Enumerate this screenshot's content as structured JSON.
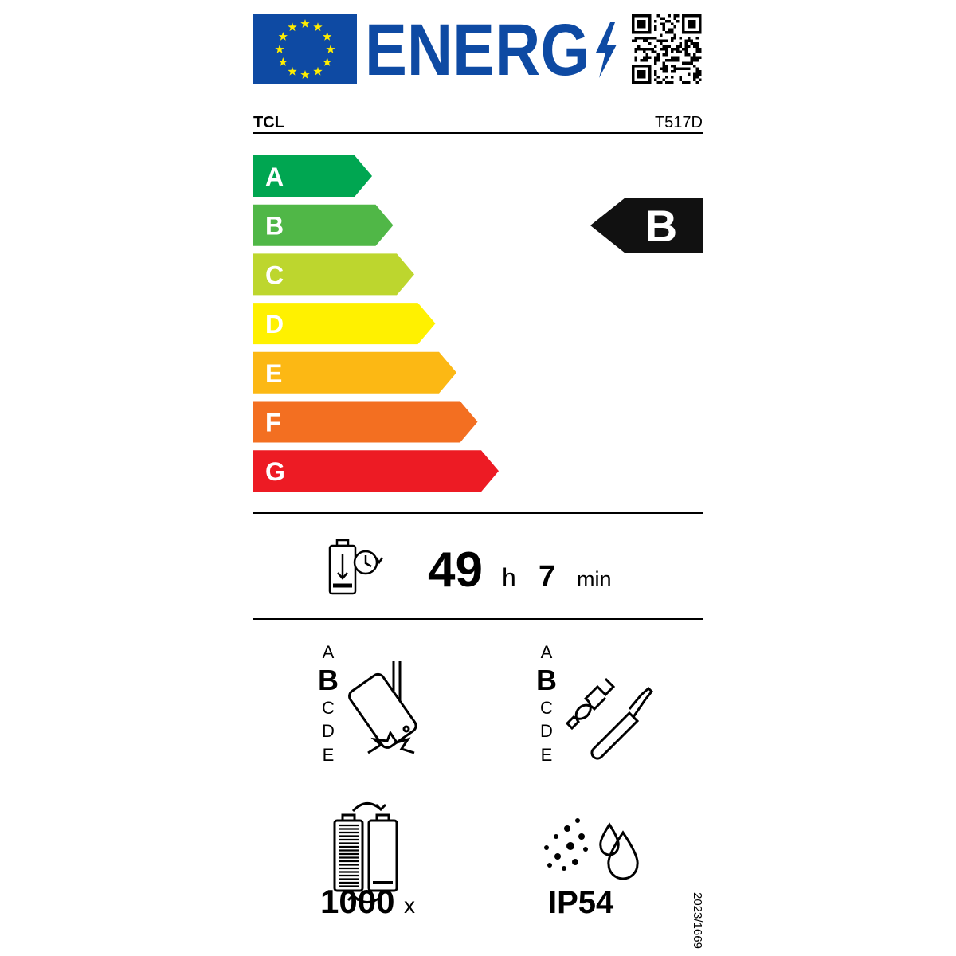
{
  "header": {
    "logo_text": "ENERG",
    "supplier": "TCL",
    "model": "T517D"
  },
  "energy_scale": {
    "classes": [
      {
        "label": "A",
        "color": "#00a651"
      },
      {
        "label": "B",
        "color": "#50b747"
      },
      {
        "label": "C",
        "color": "#bdd62e"
      },
      {
        "label": "D",
        "color": "#fff100"
      },
      {
        "label": "E",
        "color": "#fcb814"
      },
      {
        "label": "F",
        "color": "#f36f21"
      },
      {
        "label": "G",
        "color": "#ed1b24"
      }
    ],
    "rating": "B"
  },
  "battery_endurance": {
    "hours": "49",
    "hours_unit": "h",
    "minutes": "7",
    "minutes_unit": "min"
  },
  "drop_resistance": {
    "scale": [
      "A",
      "B",
      "C",
      "D",
      "E"
    ],
    "rating": "B"
  },
  "repairability": {
    "scale": [
      "A",
      "B",
      "C",
      "D",
      "E"
    ],
    "rating": "B"
  },
  "battery_cycles": {
    "count": "1000",
    "unit": "x"
  },
  "ingress_protection": {
    "rating": "IP54"
  },
  "regulation": "2023/1669"
}
